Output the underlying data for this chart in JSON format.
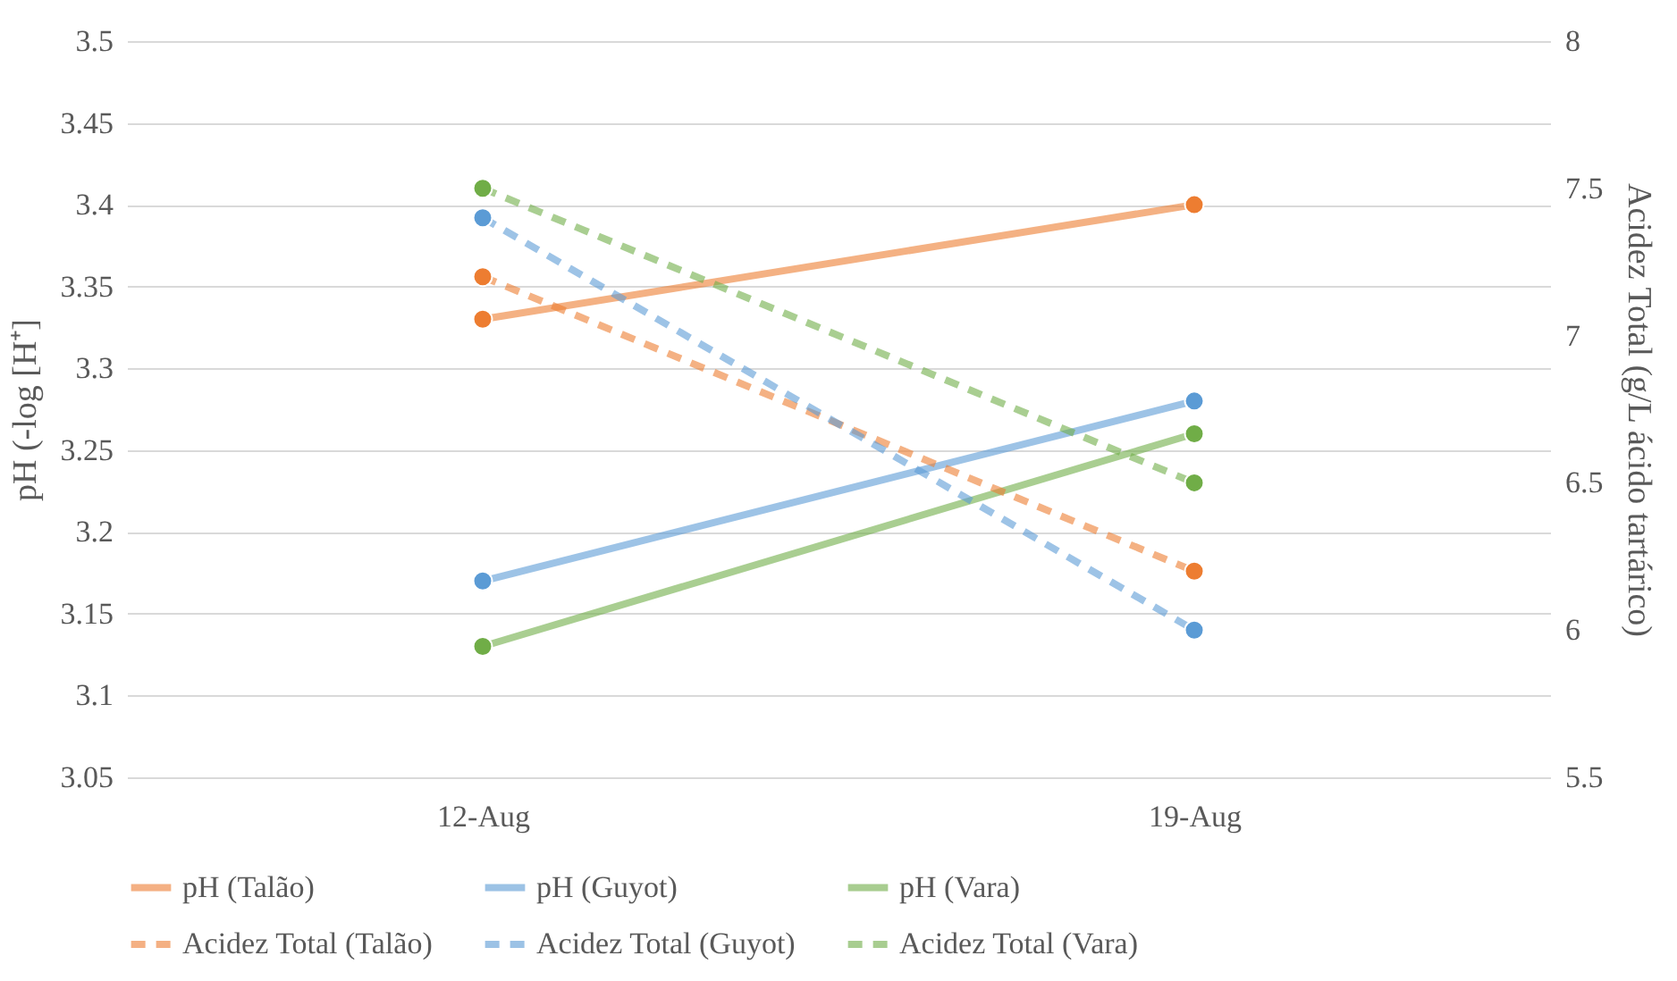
{
  "chart_data": {
    "type": "line",
    "ylabel": "pH (-log [H⁺]",
    "y2label": "Acidez Total (g/L ácido tartárico)",
    "categories": [
      "12-Aug",
      "19-Aug"
    ],
    "ylim": [
      3.05,
      3.5
    ],
    "yticks": [
      3.05,
      {
        "value": 3.1,
        "label": "3.1"
      },
      3.15,
      {
        "value": 3.2,
        "label": "3.2"
      },
      3.25,
      {
        "value": 3.3,
        "label": "3.3"
      },
      3.35,
      {
        "value": 3.4,
        "label": "3.4"
      },
      3.45,
      {
        "value": 3.5,
        "label": "3.5"
      }
    ],
    "y2lim": [
      5.5,
      8
    ],
    "y2ticks": [
      5.5,
      {
        "value": 6,
        "label": "6"
      },
      6.5,
      {
        "value": 7,
        "label": "7"
      },
      7.5,
      {
        "value": 8,
        "label": "8"
      }
    ],
    "grid": "y",
    "legend": "bottom",
    "marker": "circle",
    "series": [
      {
        "name": "pH (Talão)",
        "color": "#ed7d31",
        "values": [
          3.33,
          3.4
        ],
        "line_style": "solid"
      },
      {
        "name": "pH (Guyot)",
        "color": "#5b9bd5",
        "values": [
          3.17,
          3.28
        ],
        "line_style": "solid"
      },
      {
        "name": "pH (Vara)",
        "color": "#70ad47",
        "values": [
          3.13,
          3.26
        ],
        "line_style": "solid"
      },
      {
        "name": "Acidez Total (Talão)",
        "color": "#ed7d31",
        "values": [
          7.2,
          6.2
        ],
        "axis": "y2",
        "line_style": "dashed"
      },
      {
        "name": "Acidez Total (Guyot)",
        "color": "#5b9bd5",
        "values": [
          7.4,
          6.0
        ],
        "axis": "y2",
        "line_style": "dashed"
      },
      {
        "name": "Acidez Total (Vara)",
        "color": "#70ad47",
        "values": [
          7.5,
          6.5
        ],
        "axis": "y2",
        "line_style": "dashed"
      }
    ]
  }
}
